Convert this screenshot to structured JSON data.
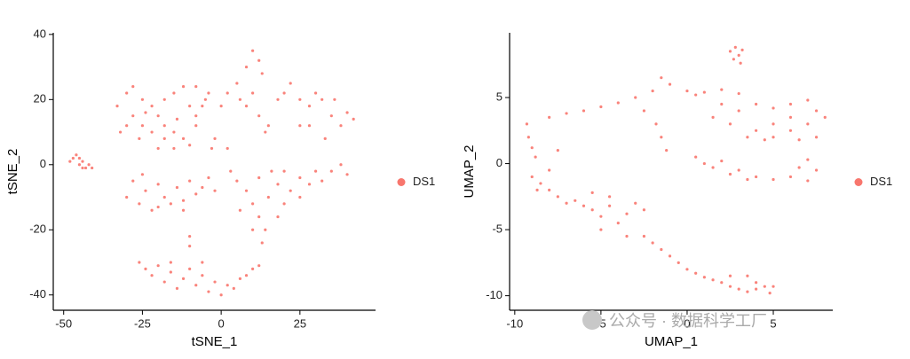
{
  "chart_data": [
    {
      "type": "scatter",
      "xlabel": "tSNE_1",
      "ylabel": "tSNE_2",
      "legend": "right",
      "xlim": [
        -53.3,
        49
      ],
      "ylim": [
        -44.7,
        40.5
      ],
      "xticks": [
        -50,
        -25,
        0,
        25
      ],
      "yticks": [
        -40,
        -20,
        0,
        20,
        40
      ],
      "series": [
        {
          "name": "DS1",
          "color": "#f8766d",
          "x": [
            -47,
            -45,
            -44,
            -43,
            -46,
            -42,
            -44,
            -48,
            -41,
            -45,
            -33,
            -30,
            -28,
            -25,
            -22,
            -20,
            -18,
            -15,
            -12,
            -10,
            -8,
            -6,
            -28,
            -25,
            -22,
            -18,
            -15,
            -12,
            -10,
            -8,
            -5,
            -20,
            -15,
            -30,
            -26,
            -8,
            -4,
            -14,
            -24,
            -18,
            -30,
            -28,
            -26,
            -24,
            -22,
            -20,
            -18,
            -16,
            -14,
            -12,
            -10,
            -8,
            -6,
            -4,
            -25,
            -20,
            -12,
            -2,
            5,
            8,
            10,
            12,
            13,
            6,
            8,
            10,
            12,
            14,
            18,
            20,
            22,
            25,
            28,
            30,
            32,
            35,
            38,
            40,
            42,
            33,
            36,
            28,
            2,
            0,
            15,
            25,
            5,
            8,
            10,
            12,
            14,
            15,
            18,
            20,
            22,
            25,
            28,
            30,
            32,
            35,
            38,
            40,
            12,
            16,
            20,
            25,
            10,
            13,
            6,
            18,
            -26,
            -24,
            -22,
            -20,
            -18,
            -16,
            -14,
            -12,
            -10,
            -8,
            -6,
            -4,
            -2,
            0,
            2,
            4,
            6,
            8,
            10,
            12,
            -10,
            -10,
            -16,
            -6,
            -2,
            -3,
            2,
            3,
            -32
          ],
          "values": [
            2,
            0,
            1,
            -1,
            3,
            0,
            -1,
            1,
            -1,
            2,
            18,
            22,
            24,
            20,
            18,
            15,
            12,
            10,
            8,
            6,
            12,
            18,
            15,
            12,
            10,
            20,
            22,
            24,
            18,
            15,
            20,
            5,
            5,
            12,
            8,
            24,
            22,
            14,
            16,
            8,
            -10,
            -5,
            -12,
            -8,
            -14,
            -6,
            -10,
            -12,
            -7,
            -11,
            -5,
            -9,
            -7,
            -4,
            -3,
            -13,
            -14,
            -8,
            25,
            30,
            35,
            32,
            28,
            20,
            18,
            22,
            15,
            10,
            20,
            22,
            25,
            20,
            18,
            22,
            20,
            15,
            12,
            16,
            14,
            8,
            20,
            12,
            22,
            18,
            12,
            12,
            -5,
            -8,
            -12,
            -16,
            -20,
            -10,
            -6,
            -12,
            -8,
            -4,
            -6,
            -2,
            -5,
            -2,
            0,
            -3,
            -4,
            -2,
            -2,
            -10,
            -20,
            -24,
            -14,
            -16,
            -30,
            -32,
            -34,
            -31,
            -36,
            -33,
            -38,
            -35,
            -32,
            -37,
            -34,
            -39,
            -36,
            -40,
            -37,
            -38,
            -35,
            -34,
            -32,
            -31,
            -25,
            -22,
            -30,
            -30,
            8,
            5,
            5,
            -2,
            10
          ]
        }
      ]
    },
    {
      "type": "scatter",
      "xlabel": "UMAP_1",
      "ylabel": "UMAP_2",
      "legend": "right",
      "xlim": [
        -10.3,
        8.45
      ],
      "ylim": [
        -11.1,
        9.9
      ],
      "xticks": [
        -10,
        -5,
        0,
        5
      ],
      "yticks": [
        -10,
        -5,
        0,
        5
      ],
      "series": [
        {
          "name": "DS1",
          "color": "#f8766d",
          "x": [
            2.5,
            2.8,
            3,
            3.2,
            2.7,
            3.1,
            -9.3,
            -9.2,
            -9,
            -8.8,
            -9,
            -8.7,
            -8,
            -7,
            -6,
            -5,
            -4,
            -3,
            -2,
            -1.5,
            -1,
            0,
            0.5,
            1,
            2,
            3,
            -2.5,
            -1.8,
            -1.5,
            -1.2,
            3,
            4,
            5,
            6,
            7,
            7.5,
            7,
            6,
            5,
            4,
            5,
            6,
            7.5,
            3.5,
            2.5,
            1.5,
            2,
            8,
            6.5,
            4.5,
            0.5,
            1,
            1.5,
            2,
            3,
            3.5,
            4,
            5,
            6,
            7,
            7.5,
            7,
            6.5,
            2.5,
            -8.5,
            -8,
            -7.5,
            -7,
            -6.5,
            -6,
            -5.5,
            -5,
            -4.5,
            -4,
            -3.5,
            -3,
            -2.5,
            -4.5,
            -5,
            -3.5,
            -5.5,
            -2.5,
            -2,
            -1.5,
            -1,
            -0.5,
            0,
            0.5,
            1,
            1.5,
            2,
            2.5,
            3,
            3.5,
            4,
            4.5,
            5,
            3.5,
            4,
            2.5,
            4.8,
            -7.5,
            -8
          ],
          "values": [
            8.5,
            8.8,
            8.2,
            8.6,
            7.9,
            7.6,
            3,
            2,
            1.2,
            0.5,
            -1,
            -2,
            3.5,
            3.8,
            4,
            4.3,
            4.6,
            5,
            5.5,
            6.5,
            6,
            5.5,
            5.2,
            5.4,
            5.6,
            5.3,
            4,
            3,
            2,
            1,
            4,
            4.5,
            4.2,
            4.5,
            4.8,
            4,
            3,
            3.5,
            3,
            2.5,
            2,
            2.5,
            2,
            2,
            3,
            3.5,
            4.5,
            3.5,
            1.8,
            1.8,
            0.5,
            0,
            -0.3,
            0.2,
            -0.5,
            -1.2,
            -1,
            -1.2,
            -1,
            -1.3,
            -0.5,
            0.3,
            -0.3,
            -0.8,
            -1.5,
            -2,
            -2.5,
            -3,
            -2.8,
            -3.2,
            -3.5,
            -4,
            -3.2,
            -4.5,
            -3.8,
            -3,
            -3.5,
            -2.5,
            -5,
            -5.5,
            -2.2,
            -5.5,
            -6,
            -6.5,
            -7,
            -7.5,
            -8,
            -8.3,
            -8.6,
            -8.8,
            -9,
            -9.3,
            -9.5,
            -9.7,
            -9.5,
            -9.3,
            -9.3,
            -8.5,
            -9,
            -8.5,
            -9.8,
            1,
            -0.5
          ]
        }
      ]
    }
  ],
  "watermark": "公众号 · 数据科学工厂"
}
